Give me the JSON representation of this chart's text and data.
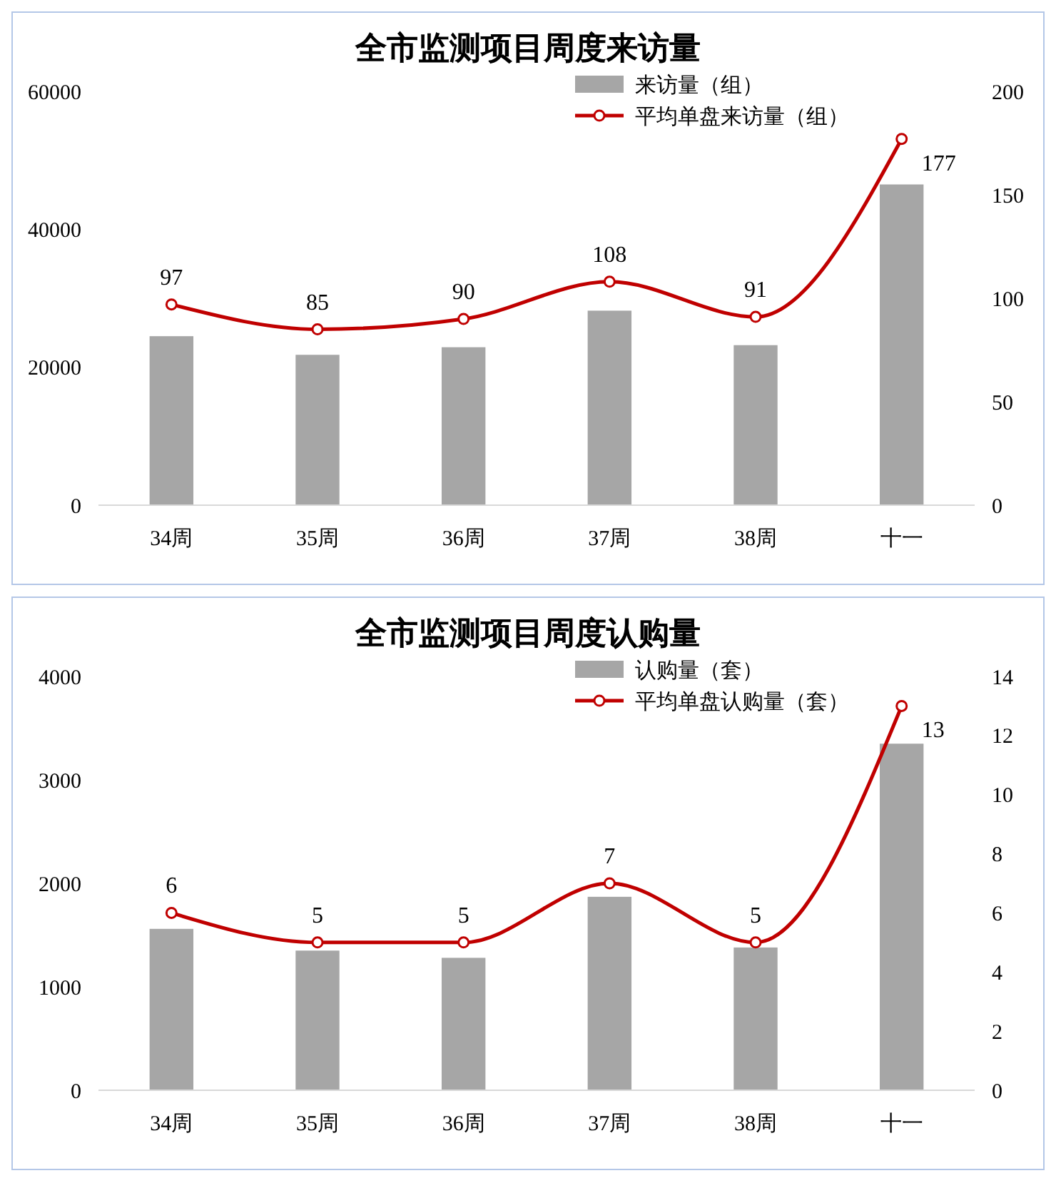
{
  "chart_data": [
    {
      "type": "bar",
      "title": "全市监测项目周度来访量",
      "categories": [
        "34周",
        "35周",
        "36周",
        "37周",
        "38周",
        "十一"
      ],
      "ylim": [
        0,
        60000
      ],
      "yticks": [
        0,
        20000,
        40000,
        60000
      ],
      "y2lim": [
        0,
        200
      ],
      "y2ticks": [
        0,
        50,
        100,
        150,
        200
      ],
      "legend": "top right",
      "grid": false,
      "series": [
        {
          "name": "来访量（组）",
          "color": "#a6a6a6",
          "values": [
            24500,
            21800,
            22900,
            28200,
            23200,
            46500
          ]
        },
        {
          "name": "平均单盘来访量（组）",
          "type": "line",
          "axis": "y2",
          "color": "#c00000",
          "marker": "circle",
          "values": [
            97,
            85,
            90,
            108,
            91,
            177
          ],
          "value_labels": [
            "97",
            "85",
            "90",
            "108",
            "91",
            "177"
          ]
        }
      ]
    },
    {
      "type": "bar",
      "title": "全市监测项目周度认购量",
      "categories": [
        "34周",
        "35周",
        "36周",
        "37周",
        "38周",
        "十一"
      ],
      "ylim": [
        0,
        4000
      ],
      "yticks": [
        0,
        1000,
        2000,
        3000,
        4000
      ],
      "y2lim": [
        0,
        14
      ],
      "y2ticks": [
        0,
        2,
        4,
        6,
        8,
        10,
        12,
        14
      ],
      "legend": "top right",
      "grid": false,
      "series": [
        {
          "name": "认购量（套）",
          "color": "#a6a6a6",
          "values": [
            1560,
            1350,
            1280,
            1870,
            1380,
            3350
          ]
        },
        {
          "name": "平均单盘认购量（套）",
          "type": "line",
          "axis": "y2",
          "color": "#c00000",
          "marker": "circle",
          "values": [
            6,
            5,
            5,
            7,
            5,
            13
          ],
          "value_labels": [
            "6",
            "5",
            "5",
            "7",
            "5",
            "13"
          ]
        }
      ]
    }
  ]
}
